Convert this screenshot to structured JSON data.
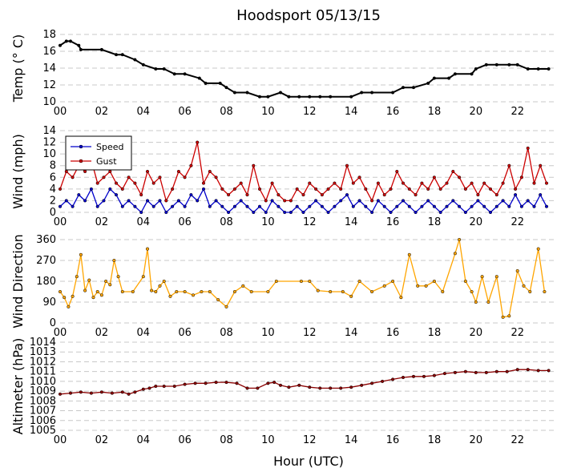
{
  "chart_data": {
    "title": "Hoodsport 05/13/15",
    "xlabel": "Hour (UTC)",
    "x_tick_labels": [
      "00",
      "02",
      "04",
      "06",
      "08",
      "10",
      "12",
      "14",
      "16",
      "18",
      "20",
      "22"
    ],
    "panels": [
      {
        "type": "line",
        "ylabel": "Temp ($^\\circ$C)",
        "ylabel_display": "Temp (° C)",
        "ylim": [
          10,
          18
        ],
        "yticks": [
          "10",
          "12",
          "14",
          "16",
          "18"
        ],
        "grid": true,
        "series": [
          {
            "color": "#000000",
            "x": [
              0,
              0.3,
              0.5,
              0.9,
              1.0,
              2.0,
              2.7,
              3.0,
              3.6,
              4.0,
              4.6,
              5.0,
              5.5,
              6.0,
              6.7,
              7.0,
              7.7,
              8.0,
              8.4,
              9.0,
              9.6,
              10.0,
              10.6,
              11.0,
              11.5,
              12.0,
              12.5,
              13.0,
              14.0,
              14.5,
              15.0,
              16.0,
              16.5,
              17.0,
              17.7,
              18.0,
              18.7,
              19.0,
              19.8,
              20.0,
              20.5,
              21.0,
              21.6,
              22.0,
              22.5,
              23.0,
              23.5
            ],
            "y": [
              16.7,
              17.2,
              17.2,
              16.7,
              16.2,
              16.2,
              15.6,
              15.6,
              15.0,
              14.4,
              13.9,
              13.9,
              13.3,
              13.3,
              12.8,
              12.2,
              12.2,
              11.7,
              11.1,
              11.1,
              10.6,
              10.6,
              11.1,
              10.6,
              10.6,
              10.6,
              10.6,
              10.6,
              10.6,
              11.1,
              11.1,
              11.1,
              11.7,
              11.7,
              12.2,
              12.8,
              12.8,
              13.3,
              13.3,
              13.9,
              14.4,
              14.4,
              14.4,
              14.4,
              13.9,
              13.9,
              13.9
            ]
          }
        ]
      },
      {
        "type": "line",
        "ylabel": "Wind (mph)",
        "ylim": [
          0,
          14
        ],
        "yticks": [
          "0",
          "2",
          "4",
          "6",
          "8",
          "10",
          "12",
          "14"
        ],
        "grid": true,
        "legend": "top-left",
        "series": [
          {
            "name": "Speed",
            "color": "#0000cc",
            "x": [
              0,
              0.3,
              0.6,
              0.9,
              1.2,
              1.5,
              1.8,
              2.1,
              2.4,
              2.7,
              3.0,
              3.3,
              3.6,
              3.9,
              4.2,
              4.5,
              4.8,
              5.1,
              5.4,
              5.7,
              6.0,
              6.3,
              6.6,
              6.9,
              7.2,
              7.5,
              7.8,
              8.1,
              8.4,
              8.7,
              9.0,
              9.3,
              9.6,
              9.9,
              10.2,
              10.5,
              10.8,
              11.1,
              11.4,
              11.7,
              12.0,
              12.3,
              12.6,
              12.9,
              13.2,
              13.5,
              13.8,
              14.1,
              14.4,
              14.7,
              15.0,
              15.3,
              15.6,
              15.9,
              16.2,
              16.5,
              16.8,
              17.1,
              17.4,
              17.7,
              18.0,
              18.3,
              18.6,
              18.9,
              19.2,
              19.5,
              19.8,
              20.1,
              20.4,
              20.7,
              21.0,
              21.3,
              21.6,
              21.9,
              22.2,
              22.5,
              22.8,
              23.1,
              23.4
            ],
            "y": [
              1,
              2,
              1,
              3,
              2,
              4,
              1,
              2,
              4,
              3,
              1,
              2,
              1,
              0,
              2,
              1,
              2,
              0,
              1,
              2,
              1,
              3,
              2,
              4,
              1,
              2,
              1,
              0,
              1,
              2,
              1,
              0,
              1,
              0,
              2,
              1,
              0,
              0,
              1,
              0,
              1,
              2,
              1,
              0,
              1,
              2,
              3,
              1,
              2,
              1,
              0,
              2,
              1,
              0,
              1,
              2,
              1,
              0,
              1,
              2,
              1,
              0,
              1,
              2,
              1,
              0,
              1,
              2,
              1,
              0,
              1,
              2,
              1,
              3,
              1,
              2,
              1,
              3,
              1
            ]
          },
          {
            "name": "Gust",
            "color": "#cc0000",
            "x": [
              0,
              0.3,
              0.6,
              0.9,
              1.2,
              1.5,
              1.8,
              2.1,
              2.4,
              2.7,
              3.0,
              3.3,
              3.6,
              3.9,
              4.2,
              4.5,
              4.8,
              5.1,
              5.4,
              5.7,
              6.0,
              6.3,
              6.6,
              6.9,
              7.2,
              7.5,
              7.8,
              8.1,
              8.4,
              8.7,
              9.0,
              9.3,
              9.6,
              9.9,
              10.2,
              10.5,
              10.8,
              11.1,
              11.4,
              11.7,
              12.0,
              12.3,
              12.6,
              12.9,
              13.2,
              13.5,
              13.8,
              14.1,
              14.4,
              14.7,
              15.0,
              15.3,
              15.6,
              15.9,
              16.2,
              16.5,
              16.8,
              17.1,
              17.4,
              17.7,
              18.0,
              18.3,
              18.6,
              18.9,
              19.2,
              19.5,
              19.8,
              20.1,
              20.4,
              20.7,
              21.0,
              21.3,
              21.6,
              21.9,
              22.2,
              22.5,
              22.8,
              23.1,
              23.4
            ],
            "y": [
              4,
              7,
              6,
              8,
              7,
              9,
              5,
              6,
              7,
              5,
              4,
              6,
              5,
              3,
              7,
              5,
              6,
              2,
              4,
              7,
              6,
              8,
              12,
              5,
              7,
              6,
              4,
              3,
              4,
              5,
              3,
              8,
              4,
              2,
              5,
              3,
              2,
              2,
              4,
              3,
              5,
              4,
              3,
              4,
              5,
              4,
              8,
              5,
              6,
              4,
              2,
              5,
              3,
              4,
              7,
              5,
              4,
              3,
              5,
              4,
              6,
              4,
              5,
              7,
              6,
              4,
              5,
              3,
              5,
              4,
              3,
              5,
              8,
              4,
              6,
              11,
              5,
              8,
              5
            ]
          }
        ]
      },
      {
        "type": "line",
        "ylabel": "Wind Direction",
        "ylim": [
          0,
          360
        ],
        "yticks": [
          "0",
          "90",
          "180",
          "270",
          "360"
        ],
        "grid": true,
        "series": [
          {
            "color": "#ffa500",
            "x": [
              0,
              0.2,
              0.4,
              0.6,
              0.8,
              1.0,
              1.2,
              1.4,
              1.6,
              1.8,
              2.0,
              2.2,
              2.4,
              2.6,
              2.8,
              3.0,
              3.5,
              4.0,
              4.2,
              4.4,
              4.6,
              4.8,
              5.0,
              5.3,
              5.6,
              6.0,
              6.4,
              6.8,
              7.2,
              7.6,
              8.0,
              8.4,
              8.8,
              9.2,
              10.0,
              10.4,
              11.6,
              12.0,
              12.4,
              13.0,
              13.6,
              14.0,
              14.4,
              15.0,
              15.6,
              16.0,
              16.4,
              16.8,
              17.2,
              17.6,
              18.0,
              18.4,
              19.0,
              19.2,
              19.5,
              19.8,
              20.0,
              20.3,
              20.6,
              21.0,
              21.3,
              21.6,
              22.0,
              22.3,
              22.6,
              23.0,
              23.3
            ],
            "y": [
              135,
              110,
              70,
              115,
              200,
              295,
              140,
              185,
              110,
              135,
              120,
              180,
              165,
              270,
              200,
              135,
              135,
              200,
              320,
              140,
              135,
              160,
              180,
              115,
              135,
              135,
              120,
              135,
              135,
              100,
              70,
              135,
              160,
              135,
              135,
              180,
              180,
              180,
              140,
              135,
              135,
              115,
              180,
              135,
              160,
              180,
              110,
              295,
              160,
              160,
              180,
              135,
              300,
              360,
              180,
              135,
              90,
              200,
              90,
              200,
              25,
              30,
              225,
              160,
              135,
              320,
              135
            ]
          }
        ]
      },
      {
        "type": "line",
        "ylabel": "Altimeter (hPa)",
        "ylim": [
          1005,
          1014
        ],
        "yticks": [
          "1005",
          "1006",
          "1007",
          "1008",
          "1009",
          "1010",
          "1011",
          "1012",
          "1013",
          "1014"
        ],
        "grid": true,
        "series": [
          {
            "color": "#8b0000",
            "x": [
              0,
              0.5,
              1.0,
              1.5,
              2.0,
              2.5,
              3.0,
              3.3,
              3.6,
              4.0,
              4.3,
              4.6,
              5.0,
              5.5,
              6.0,
              6.5,
              7.0,
              7.5,
              8.0,
              8.5,
              9.0,
              9.5,
              10.0,
              10.3,
              10.6,
              11.0,
              11.5,
              12.0,
              12.5,
              13.0,
              13.5,
              14.0,
              14.5,
              15.0,
              15.5,
              16.0,
              16.5,
              17.0,
              17.5,
              18.0,
              18.5,
              19.0,
              19.5,
              20.0,
              20.5,
              21.0,
              21.5,
              22.0,
              22.5,
              23.0,
              23.5
            ],
            "y": [
              1008.7,
              1008.8,
              1008.9,
              1008.8,
              1008.9,
              1008.8,
              1008.9,
              1008.7,
              1008.9,
              1009.2,
              1009.3,
              1009.5,
              1009.5,
              1009.5,
              1009.7,
              1009.8,
              1009.8,
              1009.9,
              1009.9,
              1009.8,
              1009.3,
              1009.3,
              1009.8,
              1009.9,
              1009.6,
              1009.4,
              1009.6,
              1009.4,
              1009.3,
              1009.3,
              1009.3,
              1009.4,
              1009.6,
              1009.8,
              1010.0,
              1010.2,
              1010.4,
              1010.5,
              1010.5,
              1010.6,
              1010.8,
              1010.9,
              1011.0,
              1010.9,
              1010.9,
              1011.0,
              1011.0,
              1011.2,
              1011.2,
              1011.1,
              1011.1
            ]
          }
        ]
      }
    ]
  }
}
